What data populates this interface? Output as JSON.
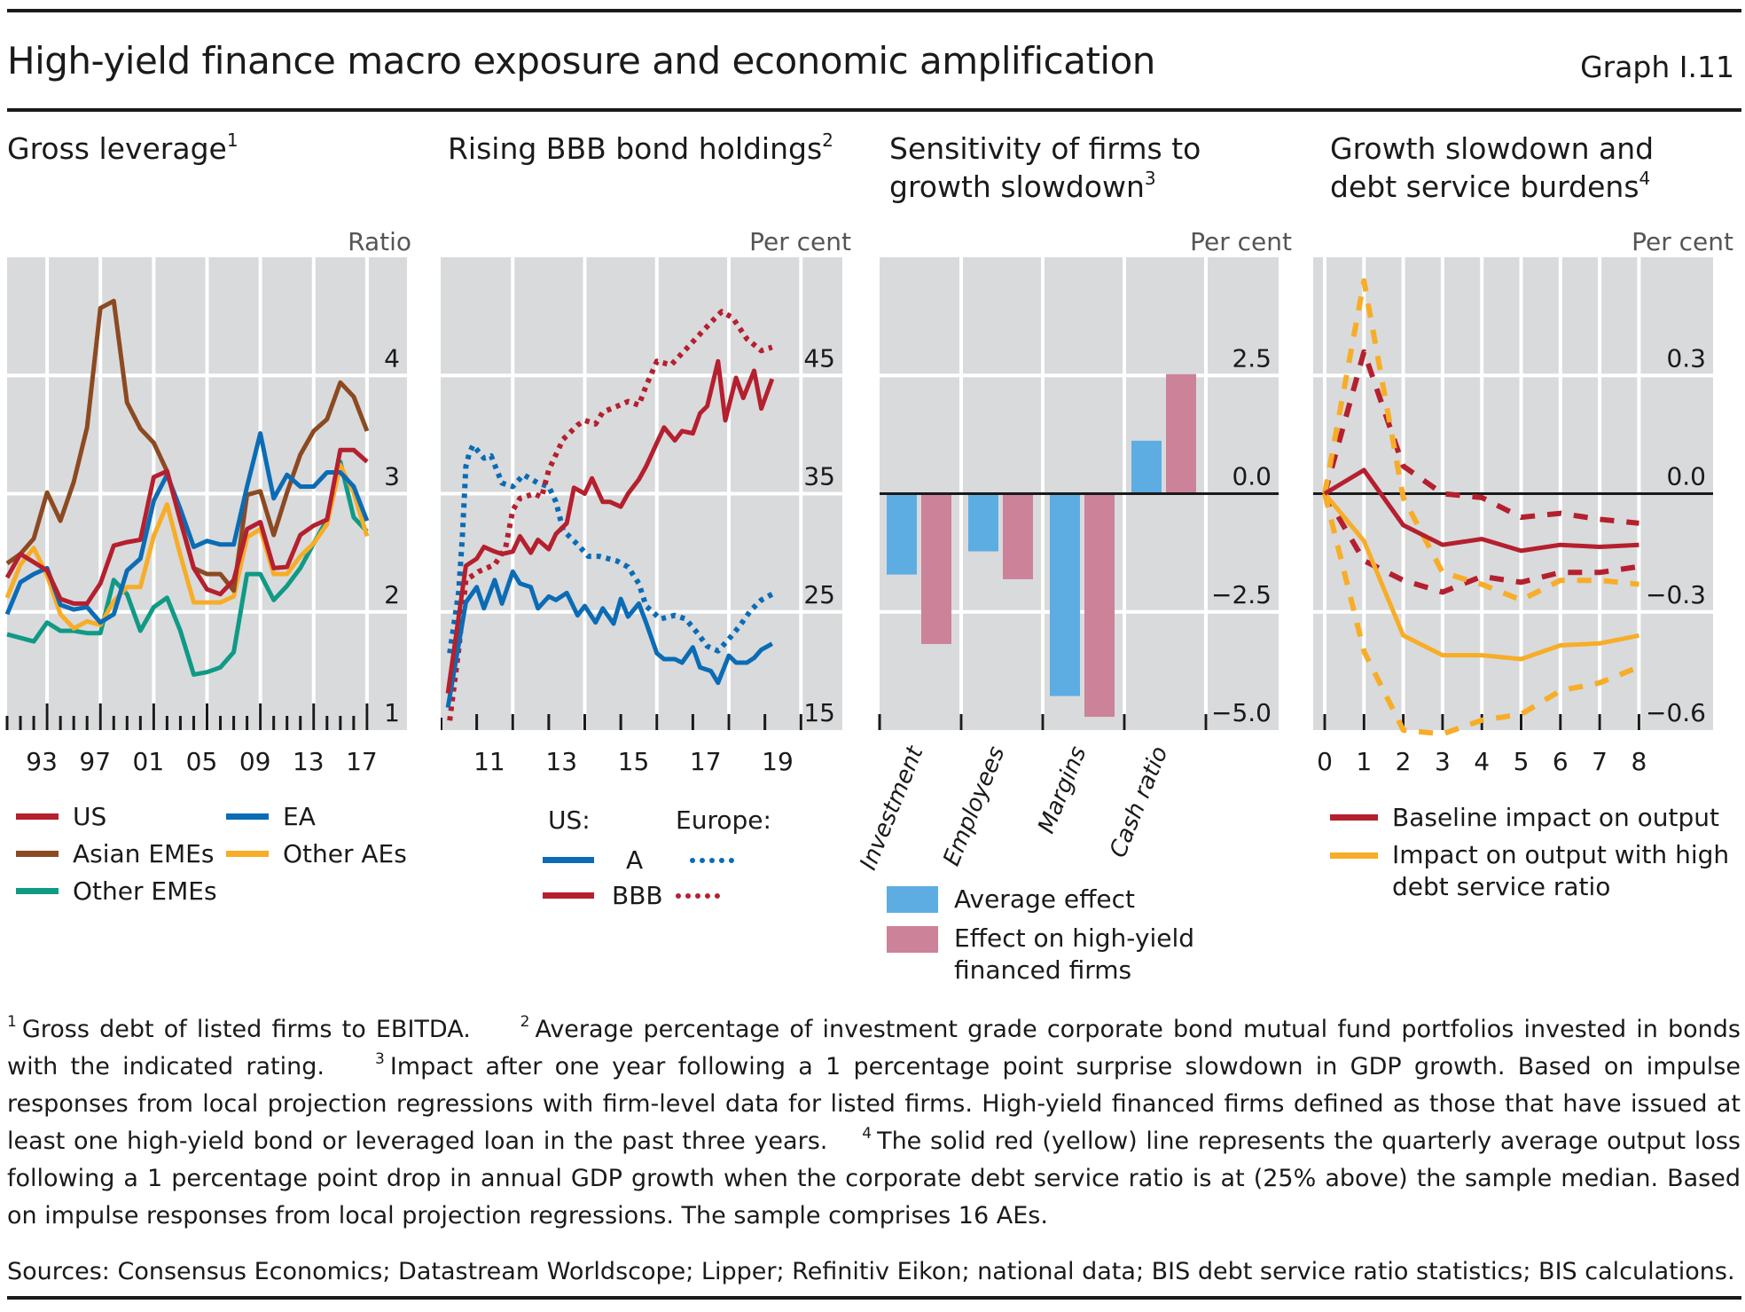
{
  "header": {
    "title": "High-yield finance macro exposure and economic amplification",
    "graph_id": "Graph I.11"
  },
  "colors": {
    "us": "#b5202e",
    "asian_emes": "#8c4a22",
    "other_emes": "#109a86",
    "ea": "#0b6cb5",
    "other_aes": "#f7ad27",
    "bar_avg": "#5dade2",
    "bar_hy": "#cc8298",
    "plot_bg": "#d9dadc"
  },
  "panels": [
    {
      "title": "Gross leverage",
      "sup": "1",
      "unit": "Ratio"
    },
    {
      "title": "Rising BBB bond holdings",
      "sup": "2",
      "unit": "Per cent"
    },
    {
      "title_line1": "Sensitivity of firms to",
      "title_line2": "growth slowdown",
      "sup": "3",
      "unit": "Per cent"
    },
    {
      "title_line1": "Growth slowdown and",
      "title_line2": "debt service burdens",
      "sup": "4",
      "unit": "Per cent"
    }
  ],
  "legends": {
    "p1": [
      "US",
      "EA",
      "Asian EMEs",
      "Other AEs",
      "Other EMEs"
    ],
    "p2": {
      "us_label": "US:",
      "europe_label": "Europe:",
      "a": "A",
      "bbb": "BBB"
    },
    "p3": {
      "avg": "Average effect",
      "hy_line1": "Effect on high-yield",
      "hy_line2": "financed firms"
    },
    "p4": {
      "baseline": "Baseline impact on output",
      "high_line1": "Impact on output with high",
      "high_line2": "debt service ratio"
    }
  },
  "chart_data": [
    {
      "type": "line",
      "title": "Gross leverage",
      "ylabel": "Ratio",
      "xlim": [
        1990,
        2020
      ],
      "ylim": [
        1,
        5
      ],
      "yticks": [
        1,
        2,
        3,
        4
      ],
      "xtick_labels": [
        "93",
        "97",
        "01",
        "05",
        "09",
        "13",
        "17"
      ],
      "xtick_years": [
        1993,
        1997,
        2001,
        2005,
        2009,
        2013,
        2017
      ],
      "x": [
        1990,
        1991,
        1992,
        1993,
        1994,
        1995,
        1996,
        1997,
        1998,
        1999,
        2000,
        2001,
        2002,
        2003,
        2004,
        2005,
        2006,
        2007,
        2008,
        2009,
        2010,
        2011,
        2012,
        2013,
        2014,
        2015,
        2016,
        2017
      ],
      "series": [
        {
          "name": "Other EMEs",
          "color_key": "other_emes",
          "values": [
            1.81,
            1.78,
            1.75,
            1.91,
            1.84,
            1.84,
            1.82,
            1.82,
            2.27,
            2.15,
            1.84,
            2.04,
            2.12,
            1.84,
            1.47,
            1.49,
            1.53,
            1.66,
            2.32,
            2.32,
            2.1,
            2.22,
            2.37,
            2.58,
            2.78,
            3.27,
            2.8,
            2.68
          ]
        },
        {
          "name": "Other AEs",
          "color_key": "other_aes",
          "values": [
            2.12,
            2.4,
            2.54,
            2.31,
            1.98,
            1.86,
            1.92,
            1.89,
            2.09,
            2.21,
            2.21,
            2.64,
            2.91,
            2.48,
            2.08,
            2.08,
            2.08,
            2.13,
            2.63,
            2.7,
            2.32,
            2.32,
            2.47,
            2.58,
            2.74,
            3.24,
            3.01,
            2.64
          ]
        },
        {
          "name": "Asian EMEs",
          "color_key": "asian_emes",
          "values": [
            2.41,
            2.49,
            2.62,
            3.01,
            2.77,
            3.1,
            3.56,
            4.57,
            4.63,
            3.77,
            3.55,
            3.43,
            3.19,
            2.78,
            2.37,
            2.32,
            2.32,
            2.18,
            2.99,
            3.02,
            2.65,
            3.01,
            3.33,
            3.53,
            3.63,
            3.94,
            3.82,
            3.53
          ]
        },
        {
          "name": "EA",
          "color_key": "ea",
          "values": [
            1.98,
            2.25,
            2.32,
            2.37,
            2.06,
            2.02,
            2.04,
            1.91,
            1.98,
            2.35,
            2.45,
            2.94,
            3.16,
            2.87,
            2.55,
            2.6,
            2.57,
            2.57,
            3.06,
            3.51,
            2.96,
            3.16,
            3.06,
            3.06,
            3.18,
            3.18,
            3.06,
            2.77
          ]
        },
        {
          "name": "US",
          "color_key": "us",
          "values": [
            2.29,
            2.49,
            2.42,
            2.35,
            2.11,
            2.07,
            2.07,
            2.24,
            2.56,
            2.59,
            2.61,
            3.14,
            3.19,
            2.77,
            2.37,
            2.19,
            2.15,
            2.27,
            2.7,
            2.76,
            2.37,
            2.38,
            2.65,
            2.73,
            2.78,
            3.37,
            3.37,
            3.27
          ]
        }
      ]
    },
    {
      "type": "line",
      "title": "Rising BBB bond holdings",
      "ylabel": "Per cent",
      "xlim": [
        2010,
        2021.15
      ],
      "ylim": [
        15,
        55
      ],
      "yticks": [
        15,
        25,
        35,
        45
      ],
      "xtick_labels": [
        "11",
        "13",
        "15",
        "17",
        "19"
      ],
      "xtick_years": [
        2011.5,
        2013.5,
        2015.5,
        2017.5,
        2019.5
      ],
      "series": [
        {
          "name": "Europe A",
          "style": "dotted",
          "color_key": "ea",
          "x": [
            2010.25,
            2010.5,
            2010.6,
            2010.7,
            2010.8,
            2010.9,
            2011.2,
            2011.4,
            2011.7,
            2012.0,
            2012.3,
            2012.7,
            2013.0,
            2013.2,
            2013.4,
            2013.8,
            2014.1,
            2014.4,
            2014.9,
            2015.2,
            2015.5,
            2015.7,
            2016.1,
            2016.5,
            2016.8,
            2017.1,
            2017.4,
            2017.7,
            2018.0,
            2018.3,
            2018.6,
            2018.9,
            2019.2
          ],
          "values": [
            21.5,
            26.7,
            31.3,
            37.3,
            38.5,
            39.1,
            38.0,
            38.2,
            35.9,
            35.6,
            36.6,
            35.9,
            35.6,
            34.3,
            31.9,
            30.7,
            29.7,
            29.7,
            29.3,
            28.8,
            27.4,
            25.5,
            24.4,
            24.7,
            24.4,
            23.3,
            22.1,
            21.7,
            22.7,
            23.8,
            25.1,
            26.0,
            26.5
          ]
        },
        {
          "name": "Europe BBB",
          "style": "dotted",
          "color_key": "us",
          "x": [
            2010.25,
            2010.5,
            2010.7,
            2011.05,
            2011.5,
            2011.8,
            2012.0,
            2012.2,
            2012.6,
            2012.8,
            2013.0,
            2013.4,
            2013.8,
            2014.0,
            2014.3,
            2014.5,
            2014.9,
            2015.2,
            2015.5,
            2015.7,
            2016.0,
            2016.4,
            2016.8,
            2017.2,
            2017.6,
            2017.8,
            2018.1,
            2018.5,
            2018.9,
            2019.2
          ],
          "values": [
            15.8,
            21.8,
            27.7,
            28.4,
            29.0,
            30.4,
            33.6,
            34.6,
            35.0,
            34.7,
            37.0,
            39.6,
            40.8,
            41.2,
            40.9,
            41.9,
            42.4,
            42.8,
            42.5,
            44.1,
            46.2,
            45.9,
            47.2,
            48.5,
            49.8,
            50.4,
            49.9,
            48.1,
            47.1,
            47.4
          ]
        },
        {
          "name": "US A",
          "style": "solid",
          "color_key": "ea",
          "x": [
            2010.2,
            2010.7,
            2011.0,
            2011.2,
            2011.5,
            2011.7,
            2012.0,
            2012.2,
            2012.5,
            2012.7,
            2013.0,
            2013.2,
            2013.5,
            2013.8,
            2014.0,
            2014.3,
            2014.5,
            2014.8,
            2015.0,
            2015.2,
            2015.5,
            2015.7,
            2016.0,
            2016.2,
            2016.5,
            2016.7,
            2017.0,
            2017.2,
            2017.5,
            2017.7,
            2018.0,
            2018.2,
            2018.5,
            2018.7,
            2018.9,
            2019.2
          ],
          "values": [
            16.9,
            25.8,
            27.1,
            25.3,
            27.7,
            25.7,
            28.4,
            27.4,
            27.1,
            25.3,
            26.3,
            26.0,
            26.6,
            24.7,
            25.5,
            24.1,
            25.3,
            24.0,
            26.1,
            24.6,
            25.7,
            24.1,
            21.5,
            21.0,
            21.0,
            20.7,
            22.0,
            20.3,
            20.0,
            19.0,
            21.3,
            20.7,
            20.7,
            21.1,
            21.8,
            22.3
          ]
        },
        {
          "name": "US BBB",
          "style": "solid",
          "color_key": "us",
          "x": [
            2010.2,
            2010.7,
            2011.0,
            2011.2,
            2011.5,
            2011.7,
            2012.0,
            2012.2,
            2012.5,
            2012.7,
            2013.0,
            2013.2,
            2013.5,
            2013.7,
            2014.0,
            2014.2,
            2014.5,
            2014.7,
            2015.0,
            2015.2,
            2015.5,
            2015.7,
            2016.0,
            2016.2,
            2016.5,
            2016.7,
            2017.0,
            2017.2,
            2017.4,
            2017.7,
            2017.9,
            2018.2,
            2018.4,
            2018.7,
            2018.9,
            2019.2
          ],
          "values": [
            18.1,
            28.9,
            29.5,
            30.5,
            30.1,
            29.9,
            30.1,
            31.4,
            30.0,
            31.1,
            30.3,
            31.6,
            32.5,
            35.5,
            35.0,
            36.3,
            34.3,
            34.3,
            33.9,
            35.0,
            36.2,
            37.3,
            39.3,
            40.6,
            39.5,
            40.3,
            40.1,
            41.8,
            42.4,
            46.2,
            41.2,
            44.8,
            43.1,
            45.4,
            42.2,
            44.7
          ]
        }
      ]
    },
    {
      "type": "bar",
      "title": "Sensitivity of firms to growth slowdown",
      "ylabel": "Per cent",
      "ylim": [
        -5,
        5
      ],
      "yticks": [
        -5.0,
        -2.5,
        0.0,
        2.5
      ],
      "ytick_labels": [
        "−5.0",
        "−2.5",
        "0.0",
        "2.5"
      ],
      "categories": [
        "Investment",
        "Employees",
        "Margins",
        "Cash ratio"
      ],
      "series": [
        {
          "name": "Average effect",
          "color_key": "bar_avg",
          "values": [
            -1.71,
            -1.22,
            -4.28,
            1.12
          ]
        },
        {
          "name": "Effect on high-yield financed firms",
          "color_key": "bar_hy",
          "values": [
            -3.18,
            -1.81,
            -4.72,
            2.53
          ]
        }
      ]
    },
    {
      "type": "line",
      "title": "Growth slowdown and debt service burdens",
      "ylabel": "Per cent",
      "xlim": [
        -0.3,
        9.6
      ],
      "ylim": [
        -0.6,
        0.6
      ],
      "yticks": [
        -0.6,
        -0.3,
        0.0,
        0.3
      ],
      "ytick_labels": [
        "−0.6",
        "−0.3",
        "0.0",
        "0.3"
      ],
      "x": [
        0,
        1,
        2,
        3,
        4,
        5,
        6,
        7,
        8
      ],
      "xtick_labels": [
        "0",
        "1",
        "2",
        "3",
        "4",
        "5",
        "6",
        "7",
        "8"
      ],
      "series": [
        {
          "name": "Baseline upper band",
          "style": "dashed",
          "color_key": "us",
          "values": [
            0,
            0.36,
            0.07,
            0.0,
            -0.01,
            -0.06,
            -0.05,
            -0.065,
            -0.075
          ]
        },
        {
          "name": "Baseline lower band",
          "style": "dashed",
          "color_key": "us",
          "values": [
            0,
            -0.17,
            -0.22,
            -0.25,
            -0.21,
            -0.225,
            -0.2,
            -0.2,
            -0.185
          ]
        },
        {
          "name": "High DSR upper band",
          "style": "dashed",
          "color_key": "other_aes",
          "values": [
            0,
            0.54,
            -0.01,
            -0.2,
            -0.23,
            -0.27,
            -0.22,
            -0.22,
            -0.23
          ]
        },
        {
          "name": "High DSR lower band",
          "style": "dashed",
          "color_key": "other_aes",
          "values": [
            0,
            -0.4,
            -0.6,
            -0.61,
            -0.575,
            -0.56,
            -0.5,
            -0.48,
            -0.44
          ]
        },
        {
          "name": "Impact on output with high debt service ratio",
          "style": "solid",
          "color_key": "other_aes",
          "values": [
            0,
            -0.12,
            -0.36,
            -0.41,
            -0.41,
            -0.42,
            -0.385,
            -0.38,
            -0.36
          ]
        },
        {
          "name": "Baseline impact on output",
          "style": "solid",
          "color_key": "us",
          "values": [
            0,
            0.06,
            -0.08,
            -0.13,
            -0.115,
            -0.145,
            -0.13,
            -0.135,
            -0.13
          ]
        }
      ]
    }
  ],
  "footnotes": {
    "n1": "Gross debt of listed firms to EBITDA.",
    "n2": "Average percentage of investment grade corporate bond mutual fund portfolios invested in bonds with the indicated rating.",
    "n3": "Impact after one year following a 1 percentage point surprise slowdown in GDP growth. Based on impulse responses from local projection regressions with firm-level data for listed firms. High-yield financed firms defined as those that have issued at least one high-yield bond or leveraged loan in the past three years.",
    "n4": "The solid red (yellow) line represents the quarterly average output loss following a 1 percentage point drop in annual GDP growth when the corporate debt service ratio is at (25% above) the sample median. Based on impulse responses from local projection regressions. The sample comprises 16 AEs.",
    "sup1": "1",
    "sup2": "2",
    "sup3": "3",
    "sup4": "4"
  },
  "sources": "Sources: Consensus Economics; Datastream Worldscope; Lipper; Refinitiv Eikon; national data; BIS debt service ratio statistics; BIS calculations."
}
